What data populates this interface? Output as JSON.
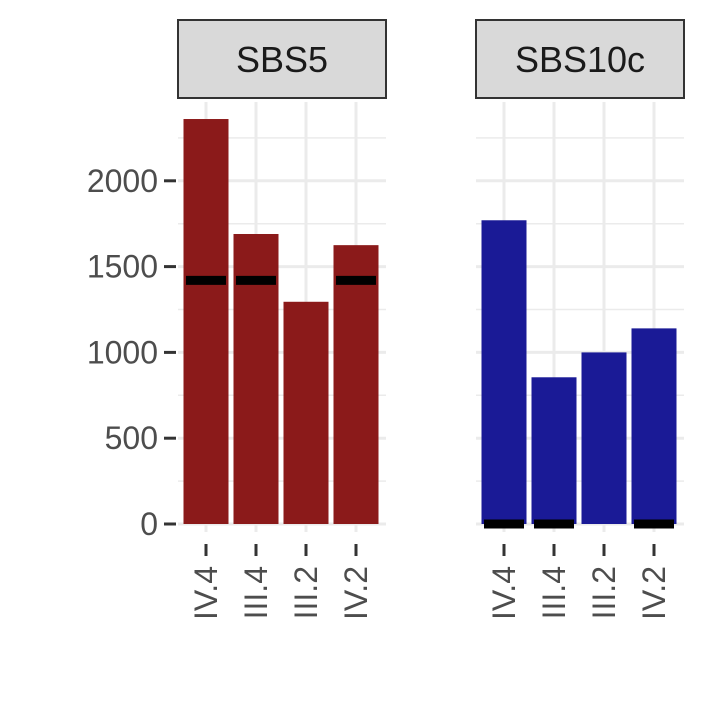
{
  "chart_data": {
    "type": "bar",
    "categories": [
      "IV.4",
      "III.4",
      "III.2",
      "IV.2"
    ],
    "ylim": [
      0,
      2400
    ],
    "y_ticks": [
      0,
      500,
      1000,
      1500,
      2000
    ],
    "y_tick_labels": [
      "0",
      "500",
      "1000",
      "1500",
      "2000"
    ],
    "grid": true,
    "panels": [
      {
        "title": "SBS5",
        "color": "#8b1a1a",
        "values": [
          2360,
          1690,
          1295,
          1625
        ],
        "markers": [
          1420,
          1420,
          null,
          1420
        ]
      },
      {
        "title": "SBS10c",
        "color": "#1a1a96",
        "values": [
          1770,
          855,
          1000,
          1140
        ],
        "markers": [
          0,
          0,
          null,
          0
        ]
      }
    ]
  }
}
